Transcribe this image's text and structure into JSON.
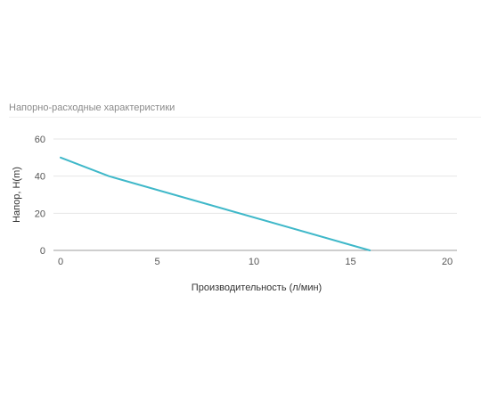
{
  "chart_data": {
    "type": "line",
    "title": "Напорно-расходные характеристики",
    "xlabel": "Производительность (л/мин)",
    "ylabel": "Напор, H(m)",
    "xlim": [
      0,
      20
    ],
    "ylim": [
      0,
      60
    ],
    "x_ticks": [
      0,
      5,
      10,
      15,
      20
    ],
    "y_ticks": [
      0,
      20,
      40,
      60
    ],
    "grid": true,
    "legend": "none",
    "series": [
      {
        "color": "#3fb8c9",
        "points": [
          [
            0,
            50
          ],
          [
            2.5,
            40
          ],
          [
            16,
            0
          ]
        ]
      }
    ]
  },
  "colors": {
    "gridline": "#e6e6e6",
    "baseline": "#9e9e9e",
    "line": "#3fb8c9"
  }
}
